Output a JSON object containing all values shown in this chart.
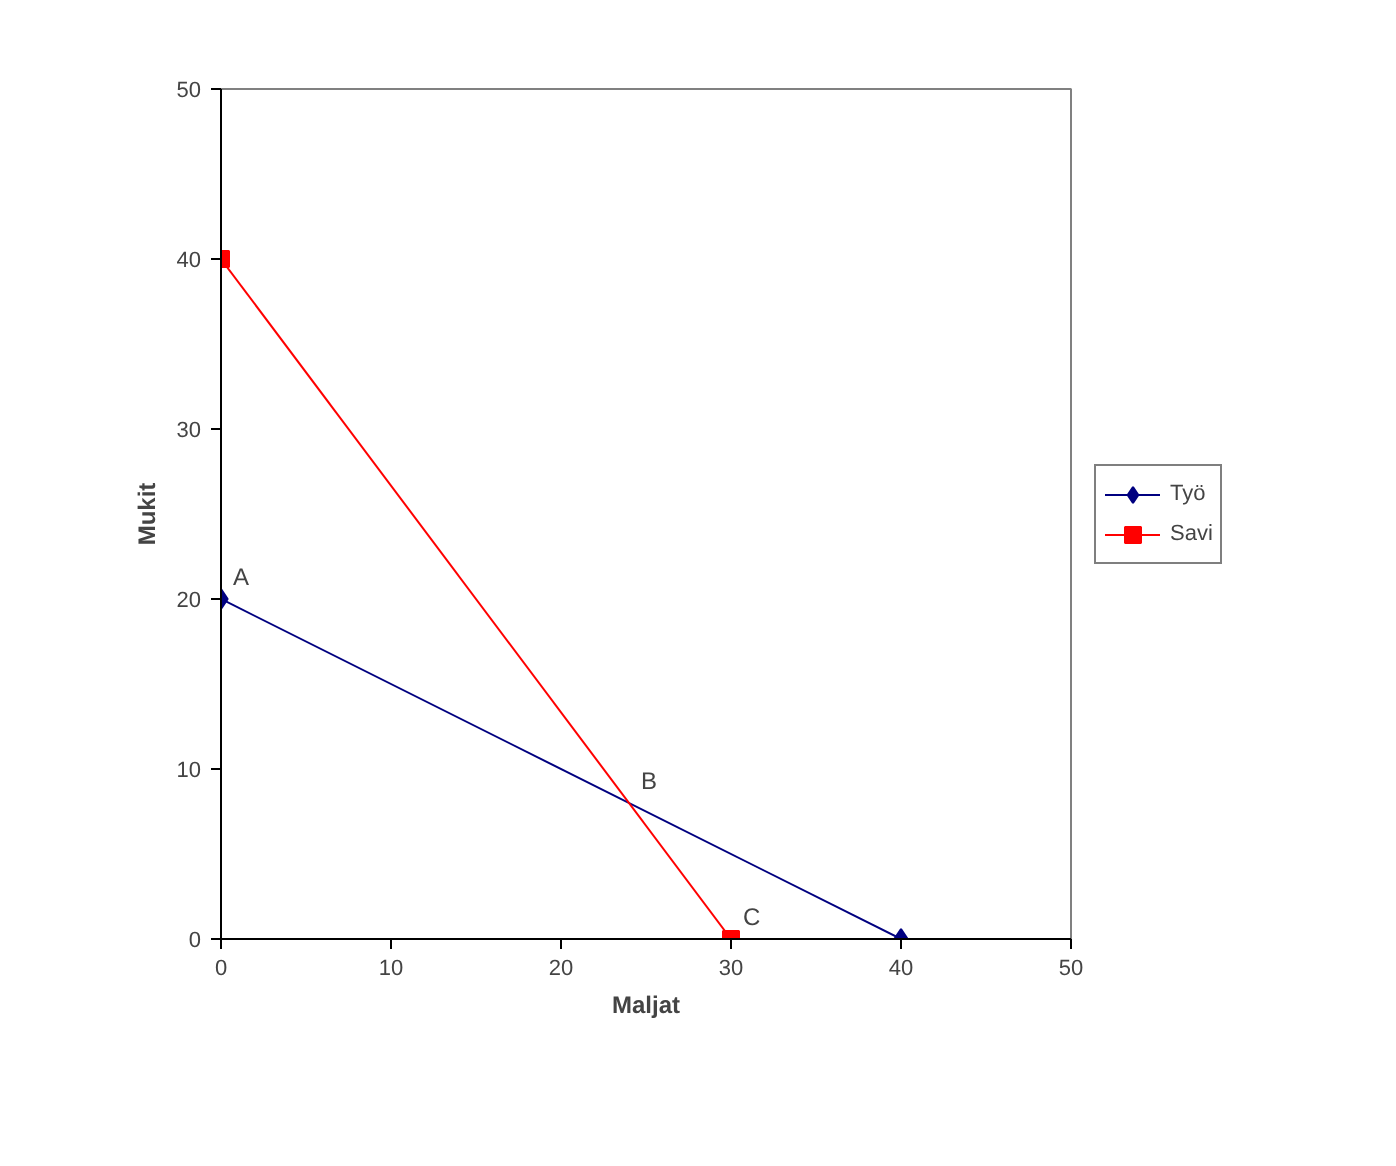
{
  "chart_data": {
    "type": "line",
    "xlabel": "Maljat",
    "ylabel": "Mukit",
    "xlim": [
      0,
      50
    ],
    "ylim": [
      0,
      50
    ],
    "xticks": [
      0,
      10,
      20,
      30,
      40,
      50
    ],
    "yticks": [
      0,
      10,
      20,
      30,
      40,
      50
    ],
    "grid": false,
    "legend": "right",
    "series": [
      {
        "name": "Työ",
        "color": "#000080",
        "x": [
          0,
          40
        ],
        "values": [
          20,
          0
        ],
        "marker": "diamond"
      },
      {
        "name": "Savi",
        "color": "#ff0000",
        "x": [
          0,
          30
        ],
        "values": [
          40,
          0
        ],
        "marker": "square"
      }
    ],
    "annotations": [
      {
        "text": "A",
        "x": 0,
        "y": 20
      },
      {
        "text": "B",
        "x": 24,
        "y": 8
      },
      {
        "text": "C",
        "x": 30,
        "y": 0
      }
    ]
  }
}
